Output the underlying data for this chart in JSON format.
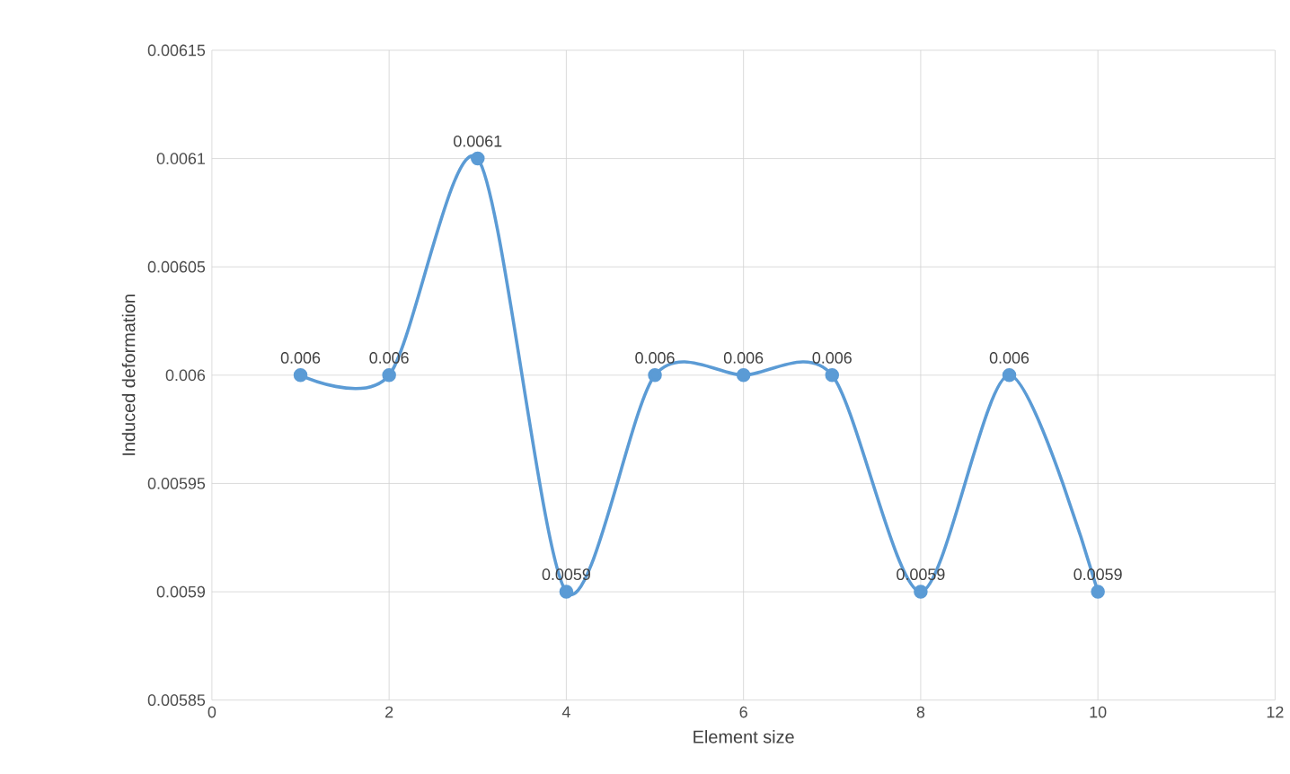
{
  "chart_data": {
    "type": "line",
    "xlabel": "Element size",
    "ylabel": "Induced deformation",
    "x": [
      1,
      2,
      3,
      4,
      5,
      6,
      7,
      8,
      9,
      10
    ],
    "values": [
      0.006,
      0.006,
      0.0061,
      0.0059,
      0.006,
      0.006,
      0.006,
      0.0059,
      0.006,
      0.0059
    ],
    "color": "#5b9bd5",
    "marker": "circle",
    "line_style": "solid",
    "data_labels": true,
    "grid": true,
    "xlim": [
      0,
      12
    ],
    "xticks": [
      0,
      2,
      4,
      6,
      8,
      10,
      12
    ],
    "ylim": [
      0.00585,
      0.00615
    ],
    "yticks": [
      0.00585,
      0.0059,
      0.00595,
      0.006,
      0.00605,
      0.0061,
      0.00615
    ]
  }
}
